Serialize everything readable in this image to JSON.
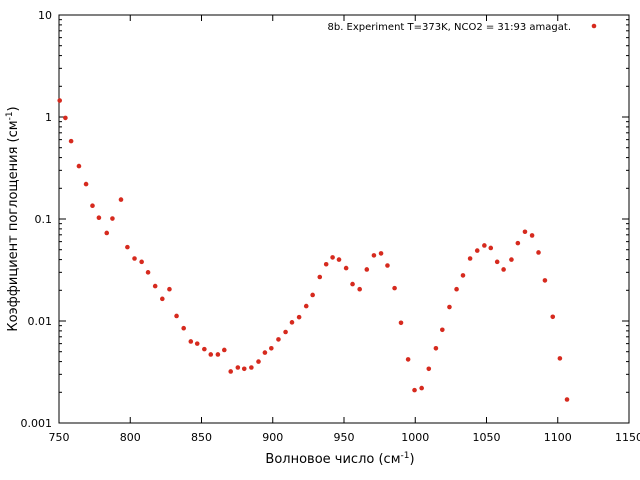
{
  "chart_data": {
    "type": "scatter",
    "xlabel": {
      "text": "Волновое число (см",
      "sup": "-1",
      "close": ")"
    },
    "ylabel": {
      "text": "Коэффициент поглощения (см",
      "sup": "-1",
      "close": ")"
    },
    "xlim": [
      750,
      1150
    ],
    "ylim": [
      0.001,
      10
    ],
    "yscale": "log",
    "x_ticks": [
      "750",
      "800",
      "850",
      "900",
      "950",
      "1000",
      "1050",
      "1100",
      "1150"
    ],
    "y_ticks": [
      "0.001",
      "0.01",
      "0.1",
      "1",
      "10"
    ],
    "grid": false,
    "legend_position": "top-right",
    "series": [
      {
        "name": "8b. Experiment T=373K, NCO2 = 31:93 amagat.",
        "color": "#d62a1e",
        "x": [
          750.5,
          754.5,
          758.5,
          764,
          769,
          773.5,
          778,
          783.5,
          787.5,
          793.5,
          798,
          803,
          808,
          812.5,
          817.5,
          822.5,
          827.5,
          832.5,
          837.5,
          842.5,
          847,
          852,
          856.5,
          861.5,
          866,
          870.5,
          875.5,
          880,
          885,
          890,
          894.5,
          899,
          904,
          909,
          913.5,
          918.5,
          923.5,
          928,
          933,
          937.5,
          942,
          946.5,
          951.5,
          956,
          961,
          966,
          971,
          976,
          980.5,
          985.5,
          990,
          995,
          999.5,
          1004.5,
          1009.5,
          1014.5,
          1019,
          1024,
          1029,
          1033.5,
          1038.5,
          1043.5,
          1048.5,
          1053,
          1057.5,
          1062,
          1067.5,
          1072,
          1077,
          1082,
          1086.5,
          1091,
          1096.5,
          1101.5,
          1106.5
        ],
        "y": [
          1.45,
          0.98,
          0.58,
          0.33,
          0.22,
          0.135,
          0.103,
          0.073,
          0.101,
          0.155,
          0.053,
          0.041,
          0.038,
          0.03,
          0.022,
          0.0165,
          0.0205,
          0.0112,
          0.0085,
          0.0063,
          0.006,
          0.0053,
          0.0047,
          0.0047,
          0.0052,
          0.0032,
          0.0035,
          0.0034,
          0.0035,
          0.004,
          0.0049,
          0.0054,
          0.0066,
          0.0078,
          0.0097,
          0.0109,
          0.014,
          0.018,
          0.027,
          0.036,
          0.042,
          0.04,
          0.033,
          0.023,
          0.0205,
          0.032,
          0.044,
          0.046,
          0.035,
          0.021,
          0.0096,
          0.0042,
          0.0021,
          0.0022,
          0.0034,
          0.0054,
          0.0082,
          0.0137,
          0.0205,
          0.028,
          0.041,
          0.049,
          0.055,
          0.052,
          0.038,
          0.032,
          0.04,
          0.058,
          0.075,
          0.069,
          0.047,
          0.025,
          0.011,
          0.0043,
          0.0017
        ]
      }
    ]
  }
}
